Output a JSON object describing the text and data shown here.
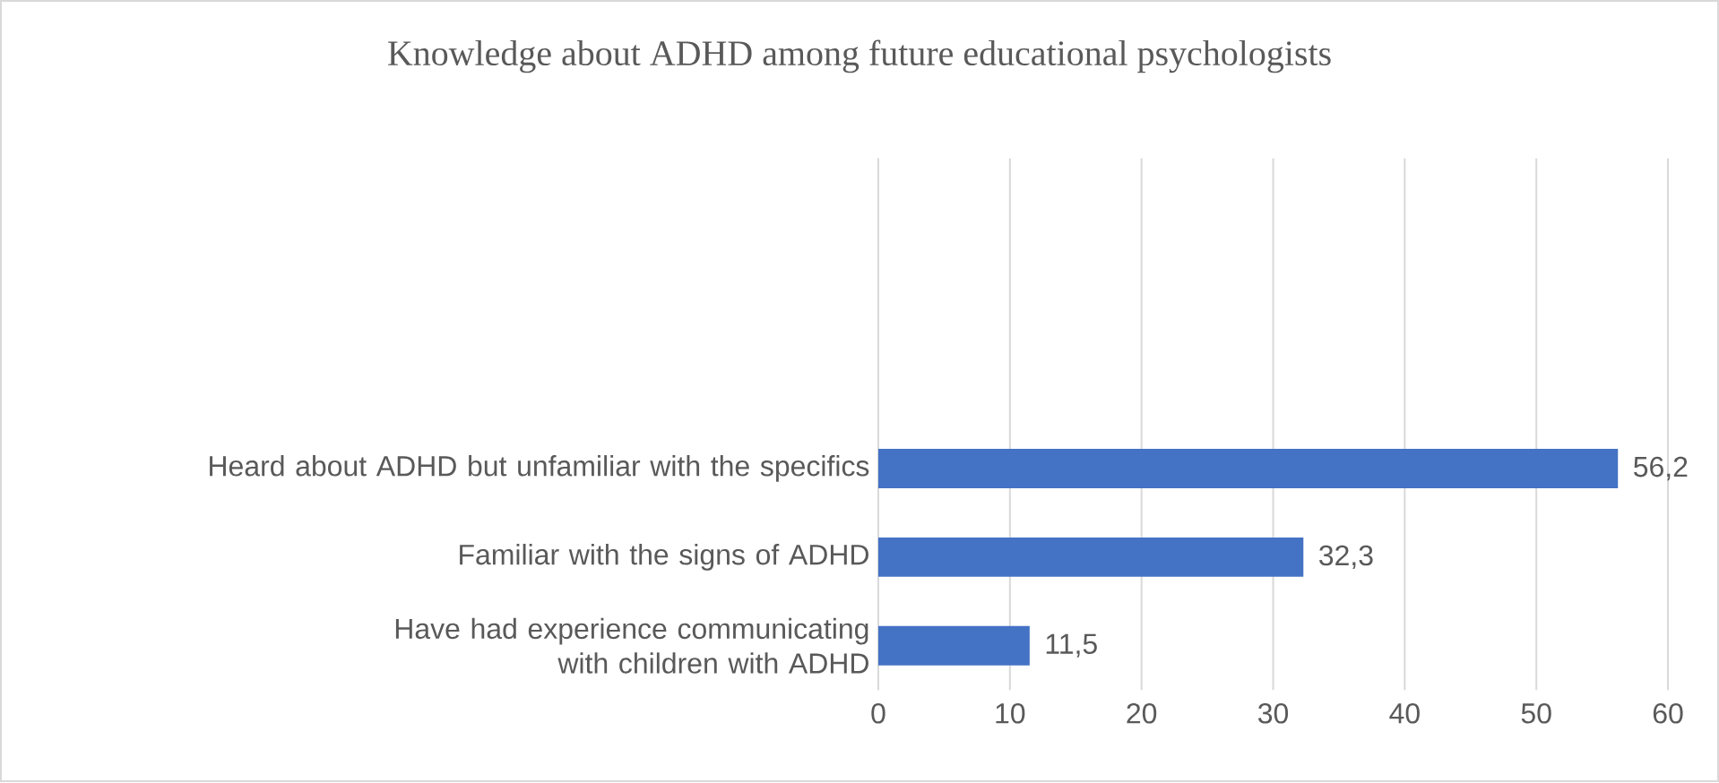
{
  "chart_data": {
    "type": "bar",
    "orientation": "horizontal",
    "title": "Knowledge about ADHD among future educational psychologists",
    "categories": [
      null,
      null,
      null,
      "Heard about ADHD but unfamiliar with the specifics",
      "Familiar with the signs of ADHD",
      "Have had experience communicating with children with ADHD"
    ],
    "values": [
      null,
      null,
      null,
      56.2,
      32.3,
      11.5
    ],
    "value_labels": [
      null,
      null,
      null,
      "56,2",
      "32,3",
      "11,5"
    ],
    "color": "#4472c4",
    "xlim": [
      0,
      60
    ],
    "xticks": [
      0,
      10,
      20,
      30,
      40,
      50,
      60
    ],
    "grid": "x"
  }
}
